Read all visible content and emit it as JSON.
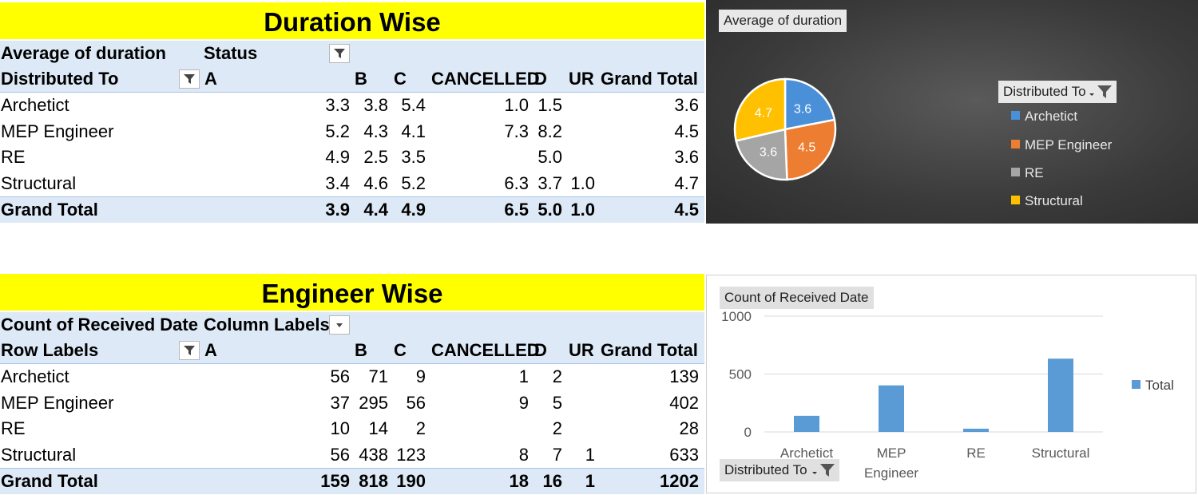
{
  "duration": {
    "title": "Duration Wise",
    "value_label": "Average of duration",
    "col_field": "Status",
    "row_field": "Distributed To",
    "columns": [
      "A",
      "B",
      "C",
      "CANCELLED",
      "D",
      "UR",
      "Grand Total"
    ],
    "rows": [
      {
        "label": "Archetict",
        "cells": [
          "3.3",
          "3.8",
          "5.4",
          "1.0",
          "1.5",
          "",
          "3.6"
        ]
      },
      {
        "label": "MEP Engineer",
        "cells": [
          "5.2",
          "4.3",
          "4.1",
          "7.3",
          "8.2",
          "",
          "4.5"
        ]
      },
      {
        "label": "RE",
        "cells": [
          "4.9",
          "2.5",
          "3.5",
          "",
          "5.0",
          "",
          "3.6"
        ]
      },
      {
        "label": "Structural",
        "cells": [
          "3.4",
          "4.6",
          "5.2",
          "6.3",
          "3.7",
          "1.0",
          "4.7"
        ]
      }
    ],
    "total": {
      "label": "Grand Total",
      "cells": [
        "3.9",
        "4.4",
        "4.9",
        "6.5",
        "5.0",
        "1.0",
        "4.5"
      ]
    }
  },
  "engineer": {
    "title": "Engineer Wise",
    "value_label": "Count of Received Date",
    "col_field": "Column Labels",
    "row_field": "Row Labels",
    "columns": [
      "A",
      "B",
      "C",
      "CANCELLED",
      "D",
      "UR",
      "Grand Total"
    ],
    "rows": [
      {
        "label": "Archetict",
        "cells": [
          "56",
          "71",
          "9",
          "1",
          "2",
          "",
          "139"
        ]
      },
      {
        "label": "MEP Engineer",
        "cells": [
          "37",
          "295",
          "56",
          "9",
          "5",
          "",
          "402"
        ]
      },
      {
        "label": "RE",
        "cells": [
          "10",
          "14",
          "2",
          "",
          "2",
          "",
          "28"
        ]
      },
      {
        "label": "Structural",
        "cells": [
          "56",
          "438",
          "123",
          "8",
          "7",
          "1",
          "633"
        ]
      }
    ],
    "total": {
      "label": "Grand Total",
      "cells": [
        "159",
        "818",
        "190",
        "18",
        "16",
        "1",
        "1202"
      ]
    }
  },
  "pie_chart": {
    "field_button": "Average of duration",
    "legend_field": "Distributed To"
  },
  "bar_chart": {
    "field_button": "Count of Received Date",
    "axis_field": "Distributed To",
    "x_labels": [
      "Archetict",
      "MEP Engineer",
      "RE",
      "Structural"
    ]
  },
  "chart_data": [
    {
      "type": "pie",
      "title": "Average of duration",
      "categories": [
        "Archetict",
        "MEP Engineer",
        "RE",
        "Structural"
      ],
      "values": [
        3.6,
        4.5,
        3.6,
        4.7
      ],
      "data_labels": [
        "3.6",
        "4.5",
        "3.6",
        "4.7"
      ],
      "colors": [
        "#4a90d9",
        "#ed7d31",
        "#a5a5a5",
        "#ffc000"
      ],
      "legend_title": "Distributed To",
      "legend_position": "right"
    },
    {
      "type": "bar",
      "title": "Count of Received Date",
      "categories": [
        "Archetict",
        "MEP Engineer",
        "RE",
        "Structural"
      ],
      "series": [
        {
          "name": "Total",
          "values": [
            139,
            402,
            28,
            633
          ]
        }
      ],
      "color": "#5b9bd5",
      "ylim": [
        0,
        1000
      ],
      "yticks": [
        "0",
        "500",
        "1000"
      ],
      "grid": true,
      "legend_position": "right"
    }
  ]
}
